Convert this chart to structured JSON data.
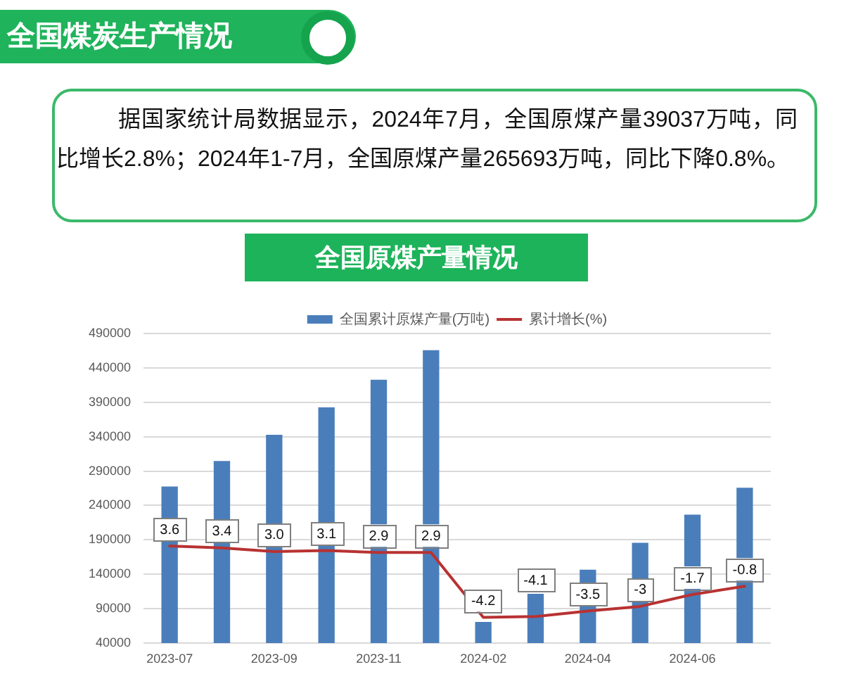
{
  "chart_data": {
    "type": "bar",
    "title": "全国原煤产量情况",
    "annotations": [
      "全国煤炭生产情况",
      "据国家统计局数据显示，2024年7月，全国原煤产量39037万吨，同比增长2.8%；2024年1-7月，全国原煤产量265693万吨，同比下降0.8%。"
    ],
    "categories": [
      "2023-07",
      null,
      "2023-09",
      null,
      "2023-11",
      null,
      "2024-02",
      null,
      "2024-04",
      null,
      "2024-06",
      null
    ],
    "series": [
      {
        "name": "全国累计原煤产量(万吨)",
        "color": "#4a7ebb",
        "values": [
          267000,
          304000,
          342000,
          382000,
          422000,
          465000,
          70000,
          111000,
          146000,
          185000,
          226000,
          265000
        ]
      },
      {
        "name": "累计增长(%)",
        "type": "line",
        "axis": "y2",
        "color": "#b83232",
        "values": [
          3.6,
          3.4,
          3.0,
          3.1,
          2.9,
          2.9,
          -4.2,
          -4.1,
          -3.5,
          -3,
          -1.7,
          -0.8
        ],
        "value_labels": [
          "3.6",
          "3.4",
          "3.0",
          "3.1",
          "2.9",
          "2.9",
          "-4.2",
          "-4.1",
          "-3.5",
          "-3",
          "-1.7",
          "-0.8"
        ]
      }
    ],
    "ylim": [
      40000,
      490000
    ],
    "yticks": [
      40000,
      90000,
      140000,
      190000,
      240000,
      290000,
      340000,
      390000,
      440000,
      490000
    ],
    "grid": "y",
    "legend": "top"
  }
}
